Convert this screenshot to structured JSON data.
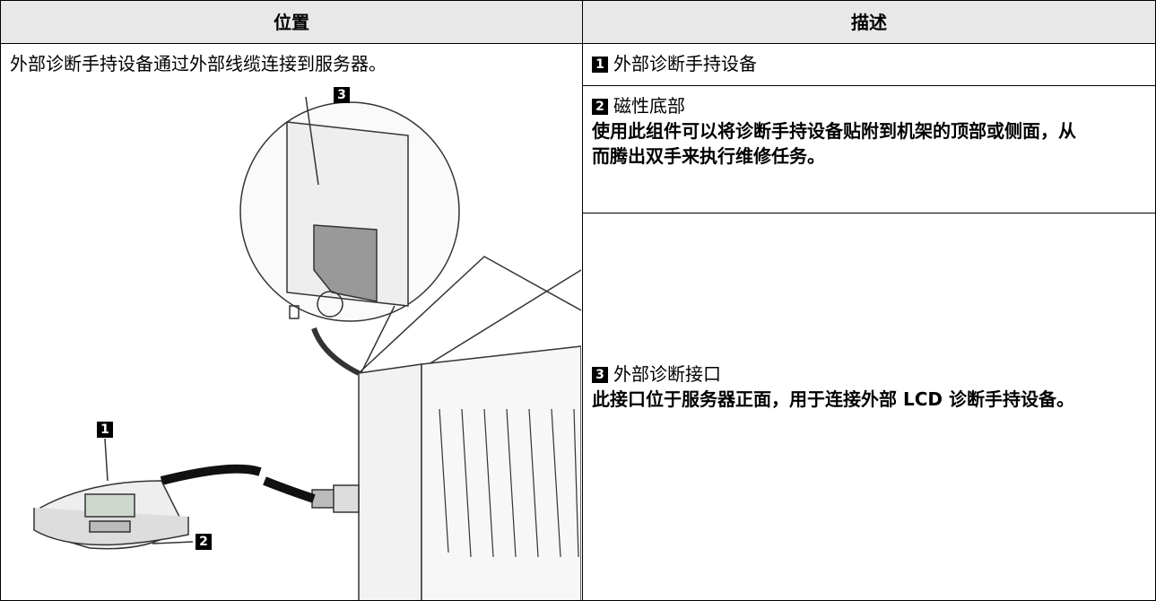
{
  "table": {
    "header": [
      "位置",
      "描述"
    ],
    "location": "外部诊断手持设备通过外部线缆连接到服务器。",
    "items": [
      {
        "badge": "1",
        "title": "外部诊断手持设备"
      },
      {
        "badge": "2",
        "title": "磁性底部",
        "description": "使用此组件可以将诊断手持设备贴附到机架的顶部或侧面，从而腾出双手来执行维修任务。"
      },
      {
        "badge": "3",
        "title": "外部诊断接口",
        "description": "此接口位于服务器正面，用于连接外部 LCD 诊断手持设备。"
      }
    ]
  }
}
